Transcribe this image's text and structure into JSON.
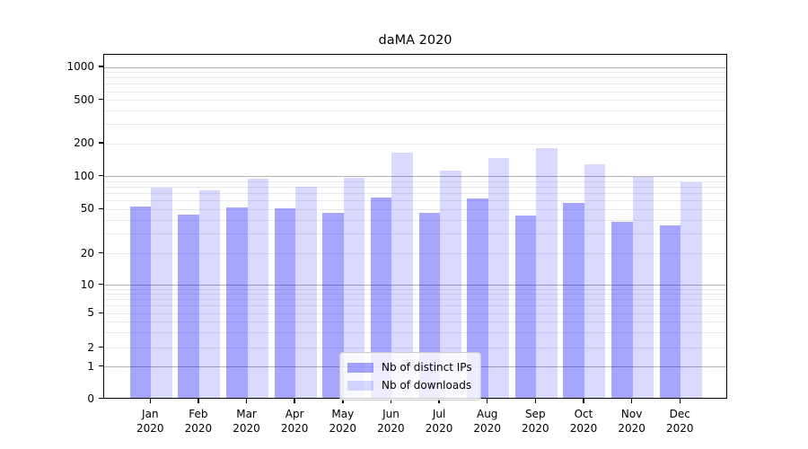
{
  "chart_data": {
    "type": "bar",
    "title": "daMA 2020",
    "categories": [
      "Jan 2020",
      "Feb 2020",
      "Mar 2020",
      "Apr 2020",
      "May 2020",
      "Jun 2020",
      "Jul 2020",
      "Aug 2020",
      "Sep 2020",
      "Oct 2020",
      "Nov 2020",
      "Dec 2020"
    ],
    "series": [
      {
        "name": "Nb of distinct IPs",
        "color": "rgba(0,0,255,0.35)",
        "values": [
          53,
          45,
          52,
          51,
          47,
          64,
          47,
          63,
          44,
          57,
          39,
          36
        ]
      },
      {
        "name": "Nb of downloads",
        "color": "rgba(0,0,255,0.15)",
        "values": [
          79,
          75,
          96,
          80,
          98,
          165,
          113,
          148,
          181,
          129,
          100,
          88
        ]
      }
    ],
    "xlabel": "",
    "ylabel": "",
    "y_ticks": [
      0,
      1,
      2,
      5,
      10,
      20,
      50,
      100,
      200,
      500,
      1000
    ],
    "y_scale": "symlog (logarithmic above ~1, compressed toward 0)",
    "ylim": [
      0,
      1300
    ],
    "grid": "major gray lines at 1,10,100,1000; light minor log lines",
    "legend_position": "lower center inside plot",
    "colors": {
      "bar_ips": "#a6a6ff",
      "bar_downloads": "#d9d9ff",
      "major_grid": "#b2b2b2",
      "minor_grid": "#eaeaea",
      "axis": "#000000",
      "background": "#ffffff"
    }
  }
}
